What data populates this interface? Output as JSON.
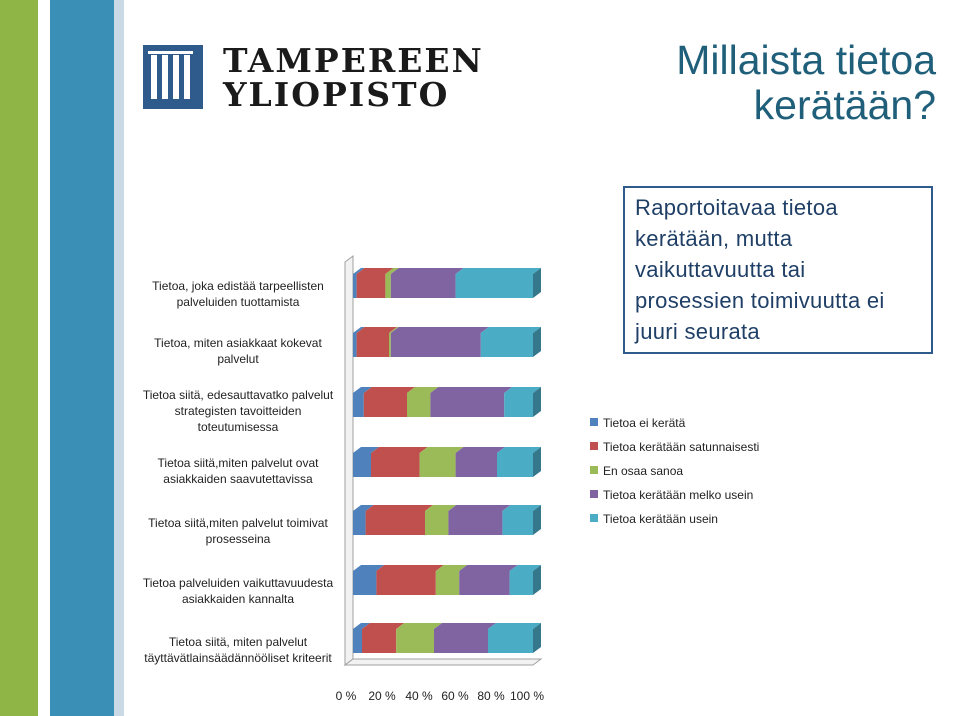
{
  "slide_title": "Millaista tietoa kerätään?",
  "logo": {
    "line1": "TAMPEREEN",
    "line2": "YLIOPISTO"
  },
  "callout_text": "Raportoitavaa tietoa kerätään, mutta vaikuttavuutta tai prosessien toimivuutta ei juuri seurata",
  "colors": {
    "stripe_blue": "#3a8fb6",
    "stripe_green": "#8fb547",
    "logo_blue": "#2e5b8c",
    "title": "#1f5f7a"
  },
  "chart_data": {
    "type": "bar",
    "orientation": "horizontal",
    "stacked": true,
    "stacking": "percent",
    "style": "3d",
    "categories": [
      "Tietoa, joka edistää tarpeellisten palveluiden tuottamista",
      "Tietoa, miten asiakkaat kokevat palvelut",
      "Tietoa siitä, edesauttavatko palvelut strategisten tavoitteiden toteutumisessa",
      "Tietoa siitä,miten palvelut ovat asiakkaiden saavutettavissa",
      "Tietoa siitä,miten palvelut toimivat prosesseina",
      "Tietoa palveluiden vaikuttavuudesta asiakkaiden kannalta",
      "Tietoa siitä, miten palvelut täyttävätlainsäädännööliset kriteerit"
    ],
    "series": [
      {
        "name": "Tietoa ei kerätä",
        "color": "#4f81bd",
        "values": [
          2,
          2,
          6,
          10,
          7,
          13,
          5
        ]
      },
      {
        "name": "Tietoa kerätään satunnaisesti",
        "color": "#c0504d",
        "values": [
          16,
          18,
          24,
          27,
          33,
          33,
          19
        ]
      },
      {
        "name": "En osaa sanoa",
        "color": "#9bbb59",
        "values": [
          3,
          1,
          13,
          20,
          13,
          13,
          21
        ]
      },
      {
        "name": "Tietoa kerätään melko usein",
        "color": "#8064a2",
        "values": [
          36,
          50,
          41,
          23,
          30,
          28,
          30
        ]
      },
      {
        "name": "Tietoa kerätään usein",
        "color": "#4bacc6",
        "values": [
          43,
          29,
          16,
          20,
          17,
          13,
          25
        ]
      }
    ],
    "x_ticks": [
      "0 %",
      "20 %",
      "40 %",
      "60 %",
      "80 %",
      "100 %"
    ],
    "xlim": [
      0,
      100
    ],
    "legend_position": "right"
  }
}
